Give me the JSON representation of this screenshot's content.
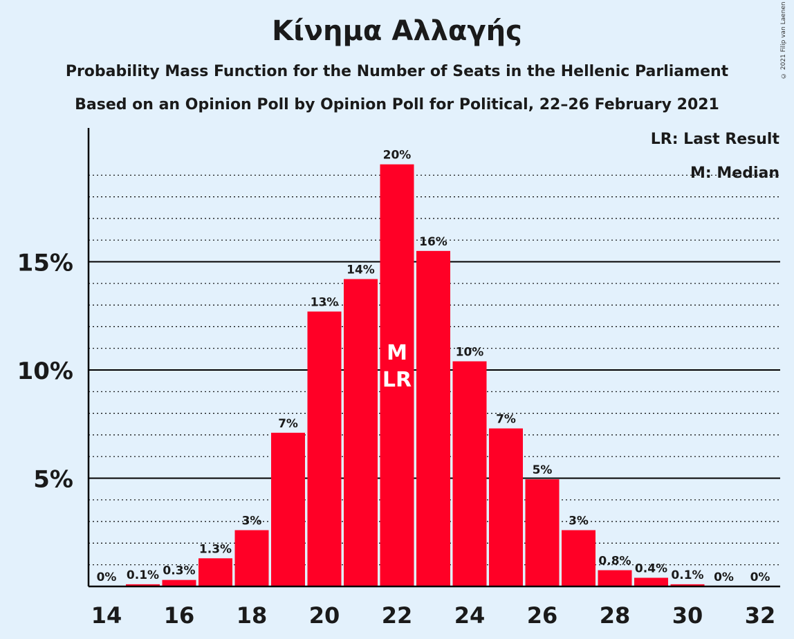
{
  "title": "Κίνημα Αλλαγής",
  "subtitle_1": "Probability Mass Function for the Number of Seats in the Hellenic Parliament",
  "subtitle_2": "Based on an Opinion Poll by Opinion Poll for Political, 22–26 February 2021",
  "copyright": "© 2021 Filip van Laenen",
  "legend": {
    "last_result": "LR: Last Result",
    "median": "M: Median"
  },
  "colors": {
    "bar": "#ff0026",
    "background": "#e3f1fc",
    "axis": "#000000"
  },
  "chart_data": {
    "type": "bar",
    "categories": [
      14,
      15,
      16,
      17,
      18,
      19,
      20,
      21,
      22,
      23,
      24,
      25,
      26,
      27,
      28,
      29,
      30,
      31,
      32
    ],
    "values": [
      0,
      0.1,
      0.3,
      1.3,
      2.6,
      7.1,
      12.7,
      14.2,
      19.5,
      15.5,
      10.4,
      7.3,
      4.95,
      2.6,
      0.75,
      0.4,
      0.1,
      0,
      0
    ],
    "labels": [
      "0%",
      "0.1%",
      "0.3%",
      "1.3%",
      "3%",
      "7%",
      "13%",
      "14%",
      "20%",
      "16%",
      "10%",
      "7%",
      "5%",
      "3%",
      "0.8%",
      "0.4%",
      "0.1%",
      "0%",
      "0%"
    ],
    "x_tick_labels": [
      "14",
      "16",
      "18",
      "20",
      "22",
      "24",
      "26",
      "28",
      "30",
      "32"
    ],
    "y_ticks": [
      5,
      10,
      15
    ],
    "y_tick_labels": [
      "5%",
      "10%",
      "15%"
    ],
    "ylim": [
      0,
      21
    ],
    "median": 22,
    "last_result": 22,
    "median_marker": "M",
    "last_result_marker": "LR",
    "grid": true,
    "legend_position": "top-right"
  }
}
